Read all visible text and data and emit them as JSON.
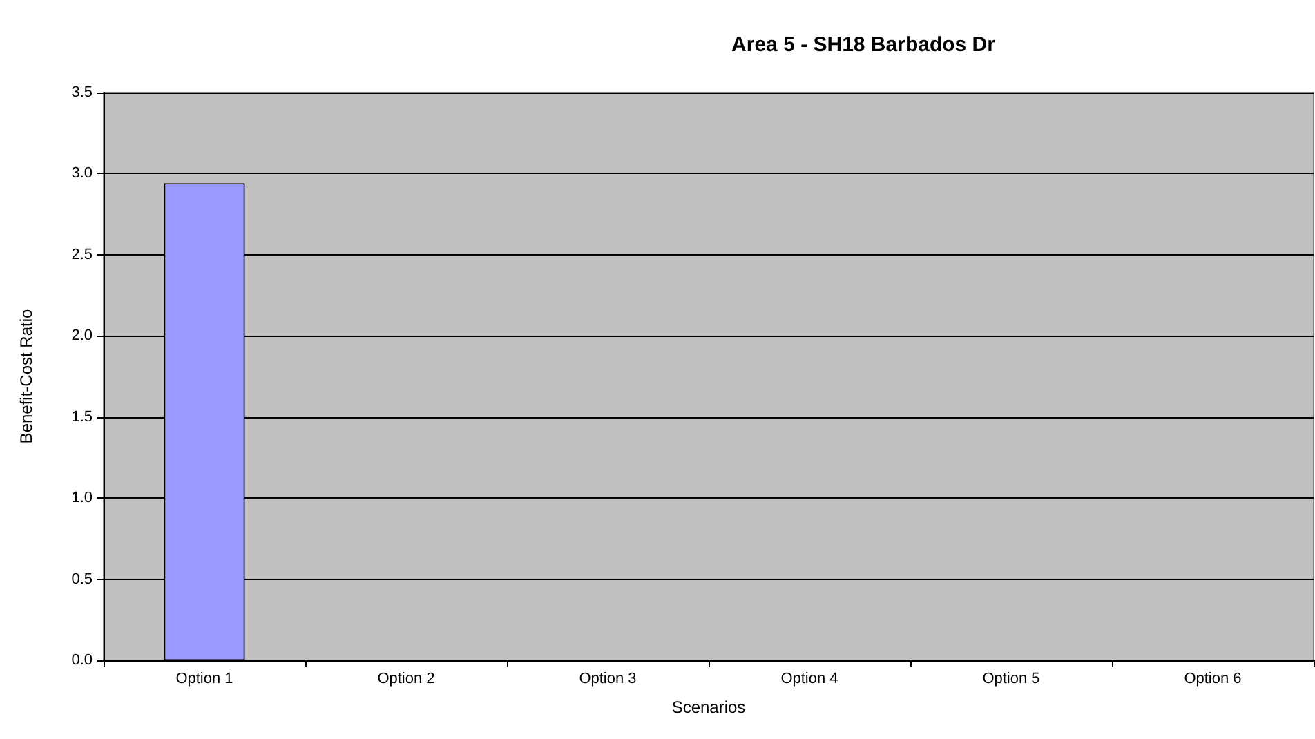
{
  "chart_data": {
    "type": "bar",
    "title": "Area 5 - SH18 Barbados Dr",
    "xlabel": "Scenarios",
    "ylabel": "Benefit-Cost Ratio",
    "categories": [
      "Option 1",
      "Option 2",
      "Option 3",
      "Option 4",
      "Option 5",
      "Option 6"
    ],
    "values": [
      2.94,
      null,
      null,
      null,
      null,
      null
    ],
    "color": "#9999ff",
    "ylim": [
      0,
      3.5
    ],
    "yticks": [
      {
        "value": 0,
        "label": "0.0"
      },
      0.5,
      {
        "value": 1,
        "label": "1.0"
      },
      1.5,
      {
        "value": 2,
        "label": "2.0"
      },
      2.5,
      {
        "value": 3,
        "label": "3.0"
      },
      3.5
    ],
    "grid": "y"
  }
}
